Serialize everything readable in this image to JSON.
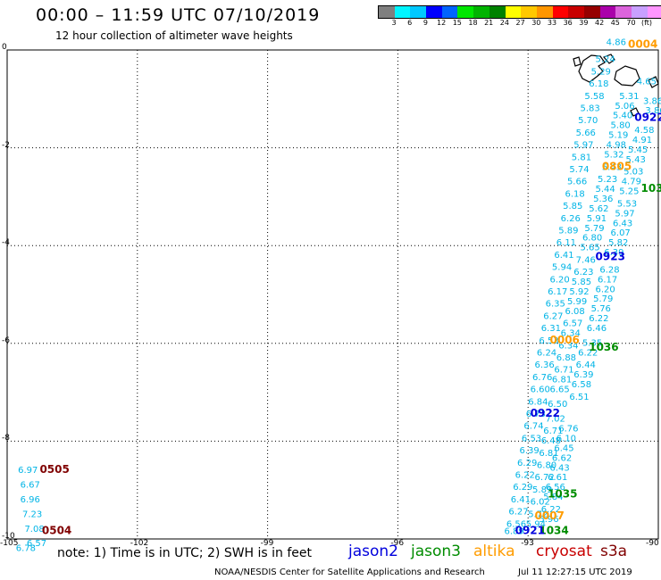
{
  "title": "00:00 – 11:59 UTC 07/10/2019",
  "subtitle": "12 hour collection of altimeter wave heights",
  "colorbar": {
    "colors": [
      "#7f7f7f",
      "#00f5ff",
      "#00c8ff",
      "#0000ff",
      "#0064ff",
      "#00e600",
      "#00b400",
      "#008200",
      "#ffff00",
      "#ffc800",
      "#ff9600",
      "#ff0000",
      "#c80000",
      "#960000",
      "#aa00aa",
      "#dc64dc",
      "#c8a0ff",
      "#ff96ff",
      "#000000"
    ],
    "labels": [
      "3",
      "6",
      "9",
      "12",
      "15",
      "18",
      "21",
      "24",
      "27",
      "30",
      "33",
      "36",
      "39",
      "42",
      "45",
      "70"
    ],
    "unit": "(ft)"
  },
  "axes": {
    "lat_ticks": [
      "0",
      "-2",
      "-4",
      "-6",
      "-8",
      "-10"
    ],
    "lon_ticks": [
      "-105",
      "-102",
      "-99",
      "-96",
      "-93",
      "-90"
    ]
  },
  "note": "note:  1) Time is in UTC;  2) SWH is in feet",
  "legend": [
    {
      "name": "jason2",
      "color": "#0000dd"
    },
    {
      "name": "jason3",
      "color": "#008c00"
    },
    {
      "name": "altika",
      "color": "#ff9c00"
    },
    {
      "name": "cryosat",
      "color": "#c80000"
    },
    {
      "name": "s3a",
      "color": "#800000"
    }
  ],
  "credit": "NOAA/NESDIS Center for Satellite Applications and Research",
  "timestamp": "Jul 11 12:27:15 UTC 2019",
  "pass_labels": [
    {
      "text": "0004",
      "sat": "altika",
      "lon": -90.7,
      "lat": 0.05
    },
    {
      "text": "0922",
      "sat": "jason2",
      "lon": -90.55,
      "lat": -1.45
    },
    {
      "text": "0805",
      "sat": "altika",
      "lon": -91.3,
      "lat": -2.45
    },
    {
      "text": "1036",
      "sat": "jason3",
      "lon": -90.4,
      "lat": -2.9
    },
    {
      "text": "0923",
      "sat": "jason2",
      "lon": -91.45,
      "lat": -4.3
    },
    {
      "text": "0006",
      "sat": "altika",
      "lon": -92.5,
      "lat": -6.0
    },
    {
      "text": "1036",
      "sat": "jason3",
      "lon": -91.6,
      "lat": -6.15
    },
    {
      "text": "0922",
      "sat": "jason2",
      "lon": -92.95,
      "lat": -7.5
    },
    {
      "text": "0505",
      "sat": "s3a",
      "lon": -104.25,
      "lat": -8.65
    },
    {
      "text": "1035",
      "sat": "jason3",
      "lon": -92.55,
      "lat": -9.15
    },
    {
      "text": "0007",
      "sat": "altika",
      "lon": -92.85,
      "lat": -9.6
    },
    {
      "text": "1034",
      "sat": "jason3",
      "lon": -92.75,
      "lat": -9.9
    },
    {
      "text": "0921",
      "sat": "jason2",
      "lon": -93.3,
      "lat": -9.9
    },
    {
      "text": "0504",
      "sat": "s3a",
      "lon": -104.2,
      "lat": -9.9
    }
  ],
  "swh_tracks": [
    {
      "name": "track-a",
      "values": [
        {
          "lon": -91.2,
          "lat": 0.1,
          "v": "4.86"
        },
        {
          "lon": -91.45,
          "lat": -0.25,
          "v": "5.24"
        },
        {
          "lon": -91.55,
          "lat": -0.5,
          "v": "5.29"
        },
        {
          "lon": -91.6,
          "lat": -0.75,
          "v": "6.18"
        },
        {
          "lon": -91.7,
          "lat": -1.0,
          "v": "5.58"
        },
        {
          "lon": -91.8,
          "lat": -1.25,
          "v": "5.83"
        },
        {
          "lon": -91.85,
          "lat": -1.5,
          "v": "5.70"
        },
        {
          "lon": -91.9,
          "lat": -1.75,
          "v": "5.66"
        },
        {
          "lon": -91.95,
          "lat": -2.0,
          "v": "5.97"
        },
        {
          "lon": -92.0,
          "lat": -2.25,
          "v": "5.81"
        },
        {
          "lon": -92.05,
          "lat": -2.5,
          "v": "5.74"
        },
        {
          "lon": -92.1,
          "lat": -2.75,
          "v": "5.66"
        },
        {
          "lon": -92.15,
          "lat": -3.0,
          "v": "6.18"
        },
        {
          "lon": -92.2,
          "lat": -3.25,
          "v": "5.85"
        },
        {
          "lon": -92.25,
          "lat": -3.5,
          "v": "6.26"
        },
        {
          "lon": -92.3,
          "lat": -3.75,
          "v": "5.89"
        },
        {
          "lon": -92.35,
          "lat": -4.0,
          "v": "6.11"
        },
        {
          "lon": -92.4,
          "lat": -4.25,
          "v": "6.41"
        },
        {
          "lon": -92.45,
          "lat": -4.5,
          "v": "5.94"
        },
        {
          "lon": -92.5,
          "lat": -4.75,
          "v": "6.20"
        },
        {
          "lon": -92.55,
          "lat": -5.0,
          "v": "6.17"
        },
        {
          "lon": -92.6,
          "lat": -5.25,
          "v": "6.35"
        },
        {
          "lon": -92.65,
          "lat": -5.5,
          "v": "6.27"
        },
        {
          "lon": -92.7,
          "lat": -5.75,
          "v": "6.31"
        },
        {
          "lon": -92.75,
          "lat": -6.0,
          "v": "6.53"
        },
        {
          "lon": -92.8,
          "lat": -6.25,
          "v": "6.24"
        },
        {
          "lon": -92.85,
          "lat": -6.5,
          "v": "6.36"
        },
        {
          "lon": -92.9,
          "lat": -6.75,
          "v": "6.76"
        },
        {
          "lon": -92.95,
          "lat": -7.0,
          "v": "6.60"
        },
        {
          "lon": -93.0,
          "lat": -7.25,
          "v": "6.84"
        },
        {
          "lon": -93.05,
          "lat": -7.5,
          "v": "6.73"
        },
        {
          "lon": -93.1,
          "lat": -7.75,
          "v": "6.74"
        },
        {
          "lon": -93.15,
          "lat": -8.0,
          "v": "6.53"
        },
        {
          "lon": -93.2,
          "lat": -8.25,
          "v": "6.39"
        },
        {
          "lon": -93.25,
          "lat": -8.5,
          "v": "6.29"
        },
        {
          "lon": -93.3,
          "lat": -8.75,
          "v": "6.22"
        },
        {
          "lon": -93.35,
          "lat": -9.0,
          "v": "6.29"
        },
        {
          "lon": -93.4,
          "lat": -9.25,
          "v": "6.41"
        },
        {
          "lon": -93.45,
          "lat": -9.5,
          "v": "6.27"
        },
        {
          "lon": -93.5,
          "lat": -9.75,
          "v": "6.56"
        },
        {
          "lon": -93.55,
          "lat": -9.9,
          "v": "6.89"
        }
      ]
    },
    {
      "name": "track-b",
      "values": [
        {
          "lon": -90.5,
          "lat": -0.7,
          "v": "4.65"
        },
        {
          "lon": -90.9,
          "lat": -1.0,
          "v": "5.31"
        },
        {
          "lon": -91.0,
          "lat": -1.2,
          "v": "5.06"
        },
        {
          "lon": -91.05,
          "lat": -1.4,
          "v": "5.40"
        },
        {
          "lon": -91.1,
          "lat": -1.6,
          "v": "5.80"
        },
        {
          "lon": -91.15,
          "lat": -1.8,
          "v": "5.19"
        },
        {
          "lon": -91.2,
          "lat": -2.0,
          "v": "4.98"
        },
        {
          "lon": -91.25,
          "lat": -2.2,
          "v": "5.32"
        },
        {
          "lon": -91.3,
          "lat": -2.45,
          "v": "5.43"
        },
        {
          "lon": -91.4,
          "lat": -2.7,
          "v": "5.23"
        },
        {
          "lon": -91.45,
          "lat": -2.9,
          "v": "5.44"
        },
        {
          "lon": -91.5,
          "lat": -3.1,
          "v": "5.36"
        },
        {
          "lon": -91.6,
          "lat": -3.3,
          "v": "5.62"
        },
        {
          "lon": -91.65,
          "lat": -3.5,
          "v": "5.91"
        },
        {
          "lon": -91.7,
          "lat": -3.7,
          "v": "5.79"
        },
        {
          "lon": -91.75,
          "lat": -3.9,
          "v": "6.80"
        },
        {
          "lon": -91.8,
          "lat": -4.1,
          "v": "5.65"
        },
        {
          "lon": -91.9,
          "lat": -4.35,
          "v": "7.46"
        },
        {
          "lon": -91.95,
          "lat": -4.6,
          "v": "6.23"
        },
        {
          "lon": -92.0,
          "lat": -4.8,
          "v": "5.85"
        },
        {
          "lon": -92.05,
          "lat": -5.0,
          "v": "5.92"
        },
        {
          "lon": -92.1,
          "lat": -5.2,
          "v": "5.99"
        },
        {
          "lon": -92.15,
          "lat": -5.4,
          "v": "6.08"
        },
        {
          "lon": -92.2,
          "lat": -5.65,
          "v": "6.57"
        },
        {
          "lon": -92.25,
          "lat": -5.85,
          "v": "6.34"
        },
        {
          "lon": -92.3,
          "lat": -6.1,
          "v": "6.34"
        },
        {
          "lon": -92.35,
          "lat": -6.35,
          "v": "6.88"
        },
        {
          "lon": -92.4,
          "lat": -6.6,
          "v": "6.71"
        },
        {
          "lon": -92.45,
          "lat": -6.8,
          "v": "6.81"
        },
        {
          "lon": -92.5,
          "lat": -7.0,
          "v": "6.65"
        },
        {
          "lon": -92.55,
          "lat": -7.3,
          "v": "6.50"
        },
        {
          "lon": -92.6,
          "lat": -7.6,
          "v": "7.02"
        },
        {
          "lon": -92.65,
          "lat": -7.85,
          "v": "6.71"
        },
        {
          "lon": -92.7,
          "lat": -8.05,
          "v": "6.48"
        },
        {
          "lon": -92.75,
          "lat": -8.3,
          "v": "6.81"
        },
        {
          "lon": -92.8,
          "lat": -8.55,
          "v": "6.80"
        },
        {
          "lon": -92.85,
          "lat": -8.8,
          "v": "6.72"
        },
        {
          "lon": -92.9,
          "lat": -9.05,
          "v": "5.89"
        },
        {
          "lon": -92.95,
          "lat": -9.3,
          "v": "6.02"
        },
        {
          "lon": -93.0,
          "lat": -9.55,
          "v": "5.72"
        },
        {
          "lon": -93.05,
          "lat": -9.75,
          "v": "5.94"
        }
      ]
    },
    {
      "name": "track-c",
      "values": [
        {
          "lon": -90.35,
          "lat": -1.1,
          "v": "3.86"
        },
        {
          "lon": -90.3,
          "lat": -1.3,
          "v": "3.86"
        },
        {
          "lon": -90.55,
          "lat": -1.7,
          "v": "4.58"
        },
        {
          "lon": -90.6,
          "lat": -1.9,
          "v": "4.91"
        },
        {
          "lon": -90.7,
          "lat": -2.1,
          "v": "5.45"
        },
        {
          "lon": -90.75,
          "lat": -2.3,
          "v": "5.43"
        },
        {
          "lon": -90.8,
          "lat": -2.55,
          "v": "5.03"
        },
        {
          "lon": -90.85,
          "lat": -2.75,
          "v": "4.79"
        },
        {
          "lon": -90.9,
          "lat": -2.95,
          "v": "5.25"
        },
        {
          "lon": -90.95,
          "lat": -3.2,
          "v": "5.53"
        },
        {
          "lon": -91.0,
          "lat": -3.4,
          "v": "5.97"
        },
        {
          "lon": -91.05,
          "lat": -3.6,
          "v": "6.43"
        },
        {
          "lon": -91.1,
          "lat": -3.8,
          "v": "6.07"
        },
        {
          "lon": -91.15,
          "lat": -4.0,
          "v": "5.82"
        },
        {
          "lon": -91.25,
          "lat": -4.2,
          "v": "6.39"
        },
        {
          "lon": -91.35,
          "lat": -4.55,
          "v": "6.28"
        },
        {
          "lon": -91.4,
          "lat": -4.75,
          "v": "6.17"
        },
        {
          "lon": -91.45,
          "lat": -4.95,
          "v": "6.20"
        },
        {
          "lon": -91.5,
          "lat": -5.15,
          "v": "5.79"
        },
        {
          "lon": -91.55,
          "lat": -5.35,
          "v": "5.76"
        },
        {
          "lon": -91.6,
          "lat": -5.55,
          "v": "6.22"
        },
        {
          "lon": -91.65,
          "lat": -5.75,
          "v": "6.46"
        },
        {
          "lon": -91.75,
          "lat": -6.05,
          "v": "5.35"
        },
        {
          "lon": -91.85,
          "lat": -6.25,
          "v": "6.22"
        },
        {
          "lon": -91.9,
          "lat": -6.5,
          "v": "6.44"
        },
        {
          "lon": -91.95,
          "lat": -6.7,
          "v": "6.39"
        },
        {
          "lon": -92.0,
          "lat": -6.9,
          "v": "6.58"
        },
        {
          "lon": -92.05,
          "lat": -7.15,
          "v": "6.51"
        },
        {
          "lon": -92.3,
          "lat": -7.8,
          "v": "6.76"
        },
        {
          "lon": -92.35,
          "lat": -8.0,
          "v": "6.10"
        },
        {
          "lon": -92.4,
          "lat": -8.2,
          "v": "6.45"
        },
        {
          "lon": -92.45,
          "lat": -8.4,
          "v": "6.62"
        },
        {
          "lon": -92.5,
          "lat": -8.6,
          "v": "6.43"
        },
        {
          "lon": -92.55,
          "lat": -8.8,
          "v": "6.61"
        },
        {
          "lon": -92.6,
          "lat": -9.0,
          "v": "6.56"
        },
        {
          "lon": -92.65,
          "lat": -9.2,
          "v": "5.84"
        },
        {
          "lon": -92.7,
          "lat": -9.45,
          "v": "6.22"
        },
        {
          "lon": -92.75,
          "lat": -9.65,
          "v": "5.96"
        }
      ]
    },
    {
      "name": "track-d",
      "values": [
        {
          "lon": -104.75,
          "lat": -8.65,
          "v": "6.97"
        },
        {
          "lon": -104.7,
          "lat": -8.95,
          "v": "6.67"
        },
        {
          "lon": -104.7,
          "lat": -9.25,
          "v": "6.96"
        },
        {
          "lon": -104.65,
          "lat": -9.55,
          "v": "7.23"
        },
        {
          "lon": -104.6,
          "lat": -9.85,
          "v": "7.08"
        },
        {
          "lon": -104.55,
          "lat": -10.15,
          "v": "6.57"
        },
        {
          "lon": -104.8,
          "lat": -10.25,
          "v": "6.78"
        }
      ]
    }
  ]
}
